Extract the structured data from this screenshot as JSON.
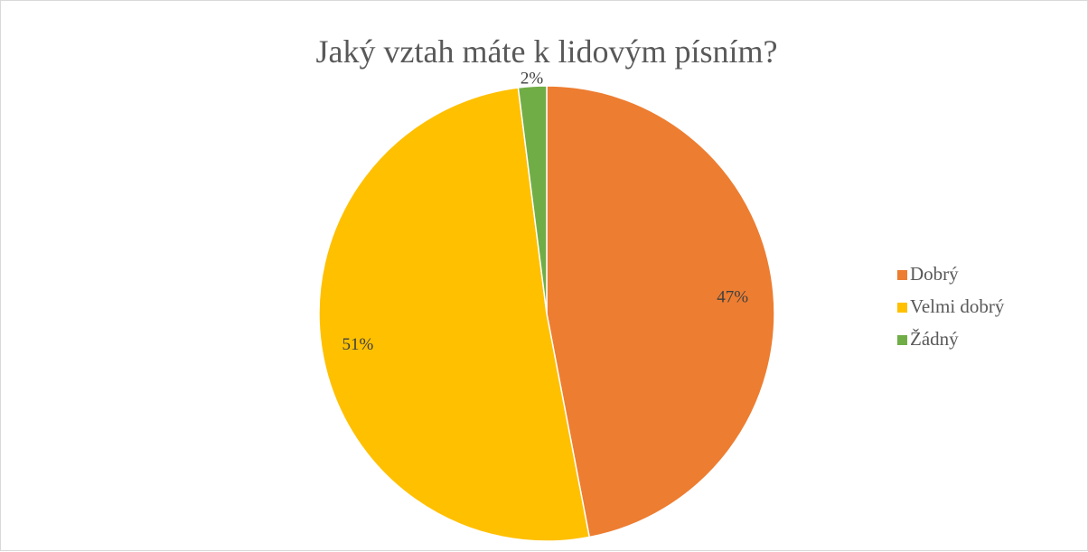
{
  "chart_data": {
    "type": "pie",
    "title": "Jaký vztah máte k lidovým písním?",
    "categories": [
      "Dobrý",
      "Velmi dobrý",
      "Žádný"
    ],
    "values": [
      47,
      51,
      2
    ],
    "data_labels": [
      "47%",
      "51%",
      "2%"
    ],
    "colors": [
      "#ED7D31",
      "#FFC000",
      "#70AD47"
    ],
    "start_angle_deg": 0,
    "direction": "clockwise",
    "legend_position": "right"
  }
}
